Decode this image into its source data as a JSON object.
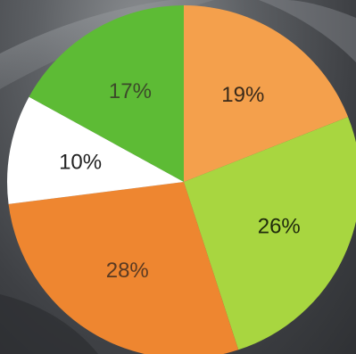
{
  "chart_data": {
    "type": "pie",
    "title": "",
    "slices": [
      {
        "label": "19%",
        "value": 19,
        "color": "#f4a04c",
        "label_color": "#3a2a1a"
      },
      {
        "label": "26%",
        "value": 26,
        "color": "#a8d640",
        "label_color": "#1f2a0c"
      },
      {
        "label": "28%",
        "value": 28,
        "color": "#ee8630",
        "label_color": "#5a3a22"
      },
      {
        "label": "10%",
        "value": 10,
        "color": "#ffffff",
        "label_color": "#222222"
      },
      {
        "label": "17%",
        "value": 17,
        "color": "#5dbb35",
        "label_color": "#3c4a2a"
      }
    ],
    "start": "12 o'clock",
    "direction": "clockwise",
    "legend": "none"
  }
}
